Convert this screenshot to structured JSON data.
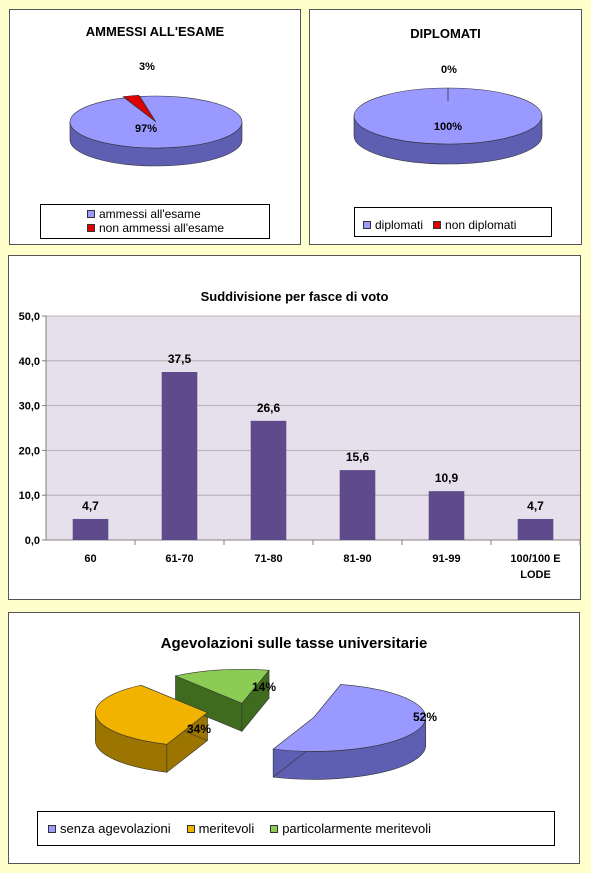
{
  "colors": {
    "purple": "#9999FF",
    "purple_side": "#5E5EB3",
    "red": "#E10000",
    "red_side": "#8A0000",
    "bar": "#5F4B8B",
    "plot_bg": "#E6E0EC",
    "yellow": "#F2B300",
    "yellow_side": "#9C7400",
    "green": "#8CCC55",
    "green_side": "#3E6B1E"
  },
  "chart_data": [
    {
      "type": "pie",
      "title": "AMMESSI ALL'ESAME",
      "labels": [
        "ammessi all'esame",
        "non ammessi all'esame"
      ],
      "values": [
        97,
        3
      ],
      "data_labels": [
        "97%",
        "3%"
      ],
      "legend": "bottom",
      "colors": [
        "#9999FF",
        "#E10000"
      ]
    },
    {
      "type": "pie",
      "title": "DIPLOMATI",
      "labels": [
        "diplomati",
        "non diplomati"
      ],
      "values": [
        100,
        0
      ],
      "data_labels": [
        "100%",
        "0%"
      ],
      "legend": "bottom",
      "colors": [
        "#9999FF",
        "#E10000"
      ]
    },
    {
      "type": "bar",
      "title": "Suddivisione per fasce di voto",
      "categories": [
        "60",
        "61-70",
        "71-80",
        "81-90",
        "91-99",
        "100/100 E LODE"
      ],
      "category_lines": [
        [
          "60"
        ],
        [
          "61-70"
        ],
        [
          "71-80"
        ],
        [
          "81-90"
        ],
        [
          "91-99"
        ],
        [
          "100/100 E",
          "LODE"
        ]
      ],
      "values": [
        4.7,
        37.5,
        26.6,
        15.6,
        10.9,
        4.7
      ],
      "data_labels": [
        "4,7",
        "37,5",
        "26,6",
        "15,6",
        "10,9",
        "4,7"
      ],
      "yticks": [
        "0,0",
        "10,0",
        "20,0",
        "30,0",
        "40,0",
        "50,0"
      ],
      "ylim": [
        0,
        50
      ],
      "grid": true
    },
    {
      "type": "pie",
      "title": "Agevolazioni sulle tasse universitarie",
      "labels": [
        "senza agevolazioni",
        "meritevoli",
        "particolarmente meritevoli"
      ],
      "values": [
        52,
        34,
        14
      ],
      "data_labels": [
        "52%",
        "34%",
        "14%"
      ],
      "legend": "bottom",
      "exploded": true,
      "colors": [
        "#9999FF",
        "#F2B300",
        "#8CCC55"
      ]
    }
  ]
}
